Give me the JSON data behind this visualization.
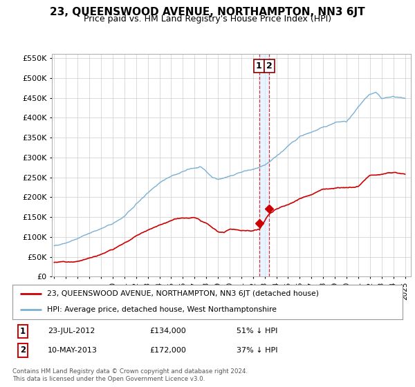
{
  "title": "23, QUEENSWOOD AVENUE, NORTHAMPTON, NN3 6JT",
  "subtitle": "Price paid vs. HM Land Registry's House Price Index (HPI)",
  "ylim": [
    0,
    560000
  ],
  "yticks": [
    0,
    50000,
    100000,
    150000,
    200000,
    250000,
    300000,
    350000,
    400000,
    450000,
    500000,
    550000
  ],
  "xlim_start": 1994.8,
  "xlim_end": 2025.5,
  "legend_line1": "23, QUEENSWOOD AVENUE, NORTHAMPTON, NN3 6JT (detached house)",
  "legend_line2": "HPI: Average price, detached house, West Northamptonshire",
  "line_color_property": "#cc0000",
  "line_color_hpi": "#7ab0d4",
  "marker1_date": 2012.55,
  "marker1_value": 134000,
  "marker2_date": 2013.36,
  "marker2_value": 172000,
  "table_row1": [
    "1",
    "23-JUL-2012",
    "£134,000",
    "51% ↓ HPI"
  ],
  "table_row2": [
    "2",
    "10-MAY-2013",
    "£172,000",
    "37% ↓ HPI"
  ],
  "footnote": "Contains HM Land Registry data © Crown copyright and database right 2024.\nThis data is licensed under the Open Government Licence v3.0.",
  "bg_color": "#ffffff",
  "grid_color": "#cccccc",
  "hpi_key_years": [
    1995,
    1996,
    1997,
    1998,
    1999,
    2000,
    2001,
    2002,
    2003,
    2004,
    2005,
    2006,
    2007,
    2007.5,
    2008,
    2008.5,
    2009,
    2009.5,
    2010,
    2011,
    2012,
    2013,
    2014,
    2015,
    2016,
    2017,
    2018,
    2019,
    2020,
    2021,
    2022,
    2022.5,
    2023,
    2024,
    2025
  ],
  "hpi_key_vals": [
    78000,
    85000,
    95000,
    108000,
    120000,
    135000,
    155000,
    185000,
    215000,
    240000,
    255000,
    268000,
    278000,
    282000,
    270000,
    255000,
    248000,
    252000,
    258000,
    265000,
    272000,
    282000,
    302000,
    330000,
    355000,
    368000,
    378000,
    390000,
    392000,
    430000,
    462000,
    468000,
    452000,
    458000,
    455000
  ],
  "prop_key_years": [
    1995,
    1996,
    1997,
    1998,
    1999,
    2000,
    2001,
    2002,
    2003,
    2004,
    2005,
    2006,
    2007,
    2008,
    2009,
    2009.5,
    2010,
    2011,
    2012,
    2012.55,
    2013,
    2013.36,
    2014,
    2015,
    2016,
    2017,
    2018,
    2019,
    2020,
    2021,
    2022,
    2023,
    2024,
    2025
  ],
  "prop_key_vals": [
    36000,
    40000,
    45000,
    52000,
    62000,
    75000,
    92000,
    112000,
    128000,
    143000,
    152000,
    160000,
    163000,
    152000,
    130000,
    128000,
    135000,
    132000,
    131000,
    134000,
    155000,
    172000,
    186000,
    198000,
    212000,
    225000,
    240000,
    246000,
    250000,
    254000,
    286000,
    290000,
    296000,
    290000
  ]
}
